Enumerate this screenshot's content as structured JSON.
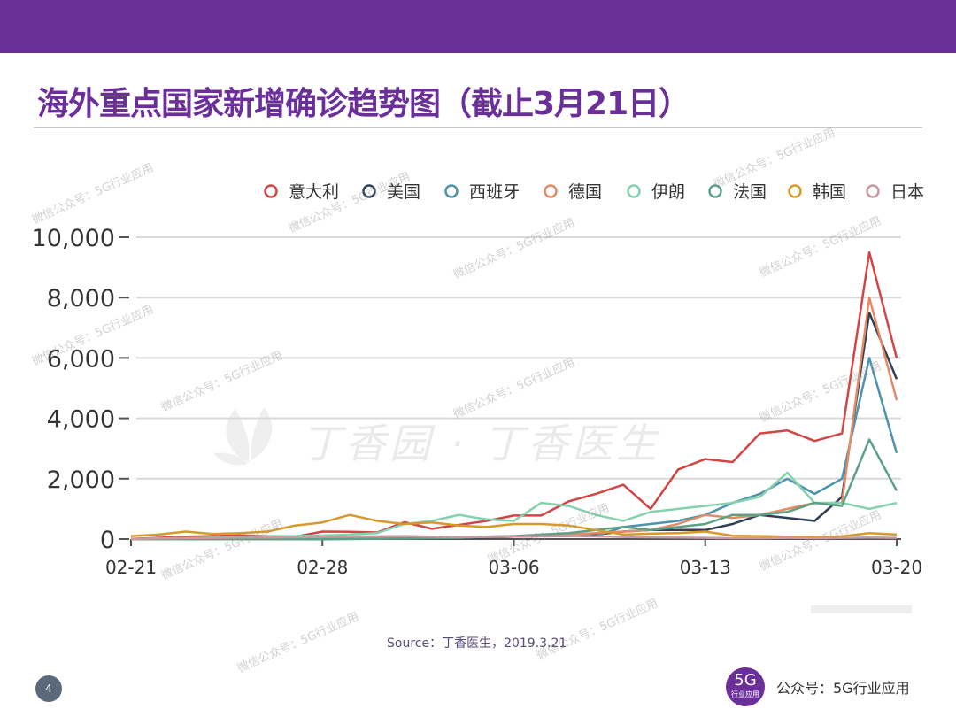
{
  "slide": {
    "title": "海外重点国家新增确诊趋势图（截止3月21日）",
    "source": "Source：丁香医生，2019.3.21",
    "page_number": "4",
    "account_label": "公众号：5G行业应用",
    "logo_main": "5G",
    "logo_sub": "行业应用",
    "background_mark": "丁香园 · 丁香医生",
    "watermark_text": "微信公众号：5G行业应用"
  },
  "colors": {
    "header_bar": "#6b2f9a",
    "title": "#6b2f9a"
  },
  "chart_data": {
    "type": "line",
    "title": "",
    "xlabel": "",
    "ylabel": "",
    "ylim": [
      0,
      10000
    ],
    "yticks": [
      "0",
      "2,000",
      "4,000",
      "6,000",
      "8,000",
      "10,000"
    ],
    "ytick_values": [
      0,
      2000,
      4000,
      6000,
      8000,
      10000
    ],
    "x": [
      "02-21",
      "02-22",
      "02-23",
      "02-24",
      "02-25",
      "02-26",
      "02-27",
      "02-28",
      "02-29",
      "03-01",
      "03-02",
      "03-03",
      "03-04",
      "03-05",
      "03-06",
      "03-07",
      "03-08",
      "03-09",
      "03-10",
      "03-11",
      "03-12",
      "03-13",
      "03-14",
      "03-15",
      "03-16",
      "03-17",
      "03-18",
      "03-19",
      "03-20"
    ],
    "xticks": [
      "02-21",
      "02-28",
      "03-06",
      "03-13",
      "03-20"
    ],
    "grid": true,
    "legend_position": "top",
    "series": [
      {
        "name": "意大利",
        "color": "#d24545",
        "values": [
          10,
          40,
          80,
          100,
          120,
          100,
          80,
          250,
          240,
          220,
          560,
          340,
          470,
          600,
          780,
          780,
          1250,
          1500,
          1800,
          1000,
          2300,
          2650,
          2550,
          3500,
          3600,
          3250,
          3500,
          9500,
          6000
        ]
      },
      {
        "name": "美国",
        "color": "#2f3f55",
        "values": [
          0,
          0,
          0,
          0,
          0,
          0,
          0,
          0,
          10,
          5,
          20,
          20,
          30,
          50,
          80,
          100,
          100,
          150,
          250,
          300,
          300,
          300,
          500,
          800,
          700,
          600,
          1400,
          7500,
          5300
        ]
      },
      {
        "name": "西班牙",
        "color": "#4e93ad",
        "values": [
          0,
          0,
          0,
          0,
          0,
          0,
          0,
          0,
          10,
          20,
          30,
          40,
          50,
          70,
          80,
          100,
          150,
          100,
          400,
          500,
          600,
          800,
          1200,
          1500,
          2000,
          1500,
          2000,
          6000,
          2850
        ]
      },
      {
        "name": "德国",
        "color": "#e58a64",
        "values": [
          0,
          0,
          0,
          0,
          0,
          0,
          0,
          20,
          30,
          40,
          50,
          50,
          60,
          80,
          100,
          100,
          150,
          200,
          250,
          300,
          500,
          800,
          700,
          800,
          1000,
          1200,
          1200,
          8000,
          4600
        ]
      },
      {
        "name": "伊朗",
        "color": "#84d1ad",
        "values": [
          0,
          20,
          30,
          50,
          80,
          100,
          100,
          120,
          150,
          200,
          500,
          600,
          800,
          650,
          600,
          1200,
          1100,
          800,
          600,
          900,
          1000,
          1100,
          1200,
          1400,
          2200,
          1200,
          1200,
          1000,
          1200
        ]
      },
      {
        "name": "法国",
        "color": "#5ca187",
        "values": [
          0,
          0,
          0,
          0,
          0,
          0,
          0,
          0,
          0,
          10,
          20,
          30,
          40,
          80,
          100,
          150,
          200,
          300,
          400,
          300,
          400,
          500,
          800,
          800,
          900,
          1200,
          1100,
          3300,
          1600
        ]
      },
      {
        "name": "韩国",
        "color": "#d9982a",
        "values": [
          100,
          150,
          250,
          170,
          200,
          250,
          450,
          550,
          800,
          600,
          500,
          550,
          450,
          400,
          500,
          500,
          450,
          300,
          150,
          180,
          200,
          250,
          110,
          100,
          80,
          70,
          90,
          200,
          150
        ]
      },
      {
        "name": "日本",
        "color": "#c99aa0",
        "values": [
          0,
          20,
          30,
          40,
          50,
          50,
          60,
          70,
          80,
          90,
          100,
          80,
          60,
          70,
          80,
          90,
          100,
          90,
          70,
          60,
          50,
          40,
          30,
          30,
          40,
          30,
          40,
          50,
          40
        ]
      }
    ]
  }
}
